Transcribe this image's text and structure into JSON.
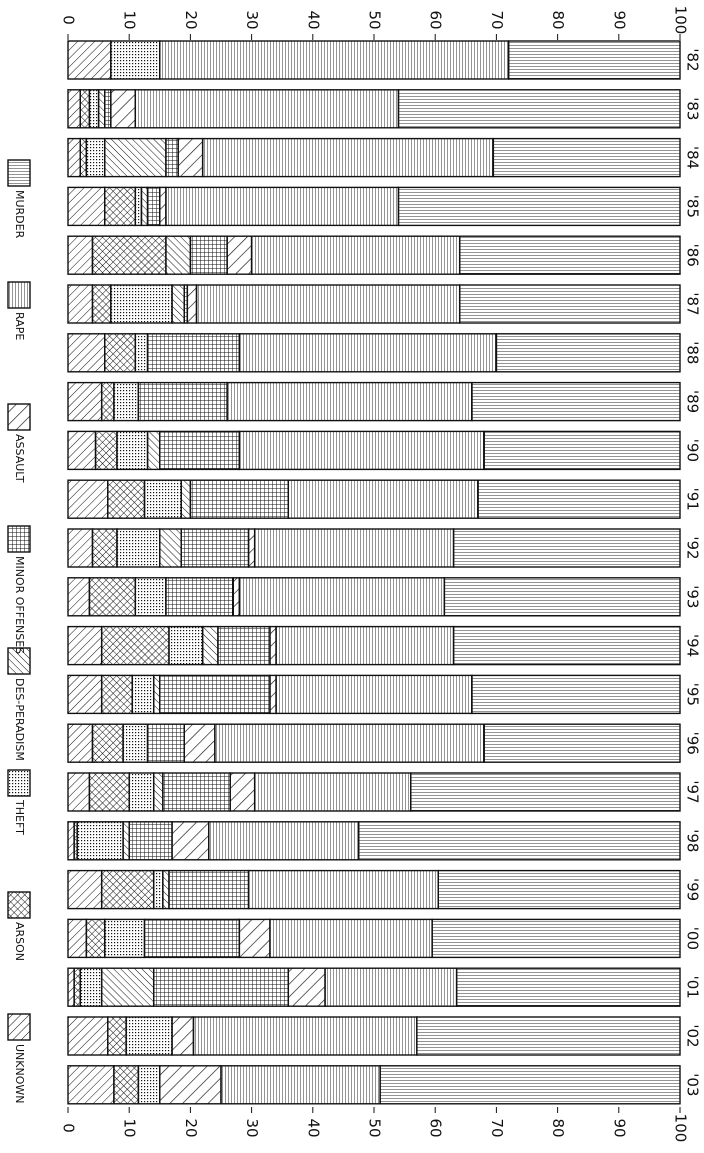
{
  "chart_data": {
    "type": "stacked-bar",
    "orientation": "rotated",
    "categories": [
      "'82",
      "'83",
      "'84",
      "'85",
      "'86",
      "'87",
      "'88",
      "'89",
      "'90",
      "'91",
      "'92",
      "'93",
      "'94",
      "'95",
      "'96",
      "'97",
      "'98",
      "'99",
      "'00",
      "'01",
      "'02",
      "'03"
    ],
    "series": [
      {
        "name": "UNKNOWN",
        "color": "#111",
        "pattern": "diag",
        "values": [
          7,
          2,
          2,
          6,
          4,
          4,
          6,
          5.5,
          4.5,
          6.5,
          4,
          3.5,
          5.5,
          5.5,
          4,
          3.5,
          1,
          5.5,
          3,
          1,
          6.5,
          7.5
        ]
      },
      {
        "name": "ARSON",
        "color": "#111",
        "pattern": "crossdiag",
        "values": [
          0,
          1.5,
          1,
          5,
          12,
          3,
          5,
          2,
          3.5,
          6,
          4,
          7.5,
          11,
          5,
          5,
          6.5,
          0.5,
          8.5,
          3,
          1,
          3,
          4
        ]
      },
      {
        "name": "THEFT",
        "color": "#111",
        "pattern": "dots",
        "values": [
          8,
          1.5,
          3,
          1,
          0,
          10,
          2,
          4,
          5,
          6,
          7,
          5,
          5.5,
          3.5,
          4,
          4,
          7.5,
          1.5,
          6.5,
          3.5,
          7.5,
          3.5
        ]
      },
      {
        "name": "DES-PERADISM",
        "color": "#111",
        "pattern": "antidiag",
        "values": [
          0,
          1,
          10,
          1,
          4,
          2,
          0,
          0,
          2,
          1.5,
          3.5,
          0,
          2.5,
          1,
          0,
          1.5,
          1,
          1,
          0,
          8.5,
          0,
          0
        ]
      },
      {
        "name": "MINOR OFFENSES",
        "color": "#111",
        "pattern": "grid",
        "values": [
          0,
          1,
          2,
          2,
          6,
          0.5,
          15,
          14.5,
          13,
          16,
          11,
          11,
          8.5,
          18,
          6,
          11,
          7,
          13,
          15.5,
          22,
          0,
          0
        ]
      },
      {
        "name": "ASSAULT",
        "color": "#111",
        "pattern": "diagwide",
        "values": [
          0,
          4,
          4,
          1,
          4,
          1.5,
          0,
          0,
          0,
          0,
          1,
          1,
          1,
          1,
          5,
          4,
          6,
          0,
          5,
          6,
          3.5,
          10
        ]
      },
      {
        "name": "RAPE",
        "color": "#111",
        "pattern": "vlines",
        "values": [
          57,
          43,
          47.5,
          38,
          34,
          43,
          42,
          40,
          40,
          31,
          32.5,
          33.5,
          29,
          32,
          44,
          25.5,
          24.5,
          31,
          26.5,
          21.5,
          36.5,
          26
        ]
      },
      {
        "name": "MURDER",
        "color": "#111",
        "pattern": "hlines",
        "values": [
          28,
          46,
          30.5,
          46,
          36,
          36,
          30,
          34,
          32,
          33,
          37,
          38.5,
          37,
          34,
          32,
          44,
          52.5,
          39.5,
          40.5,
          36.5,
          43,
          49
        ]
      }
    ],
    "xlim": [
      0,
      100
    ],
    "xticks": [
      0,
      10,
      20,
      30,
      40,
      50,
      60,
      70,
      80,
      90,
      100
    ]
  }
}
